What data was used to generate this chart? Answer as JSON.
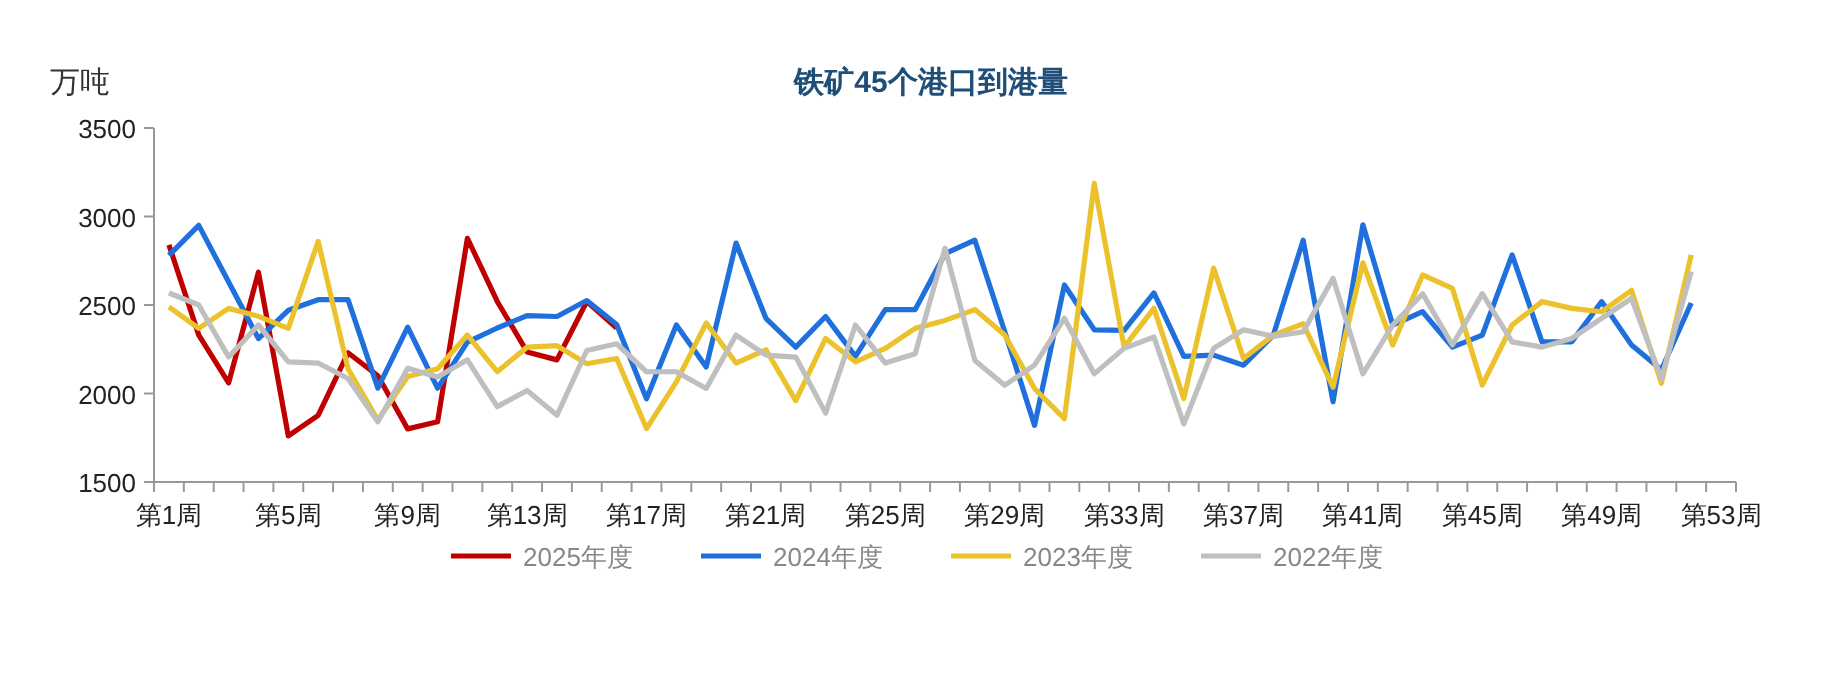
{
  "chart_data": {
    "type": "line",
    "title": "铁矿45个港口到港量",
    "ylabel": "万吨",
    "categories": [
      "第1周",
      null,
      null,
      null,
      "第5周",
      null,
      null,
      null,
      "第9周",
      null,
      null,
      null,
      "第13周",
      null,
      null,
      null,
      "第17周",
      null,
      null,
      null,
      "第21周",
      null,
      null,
      null,
      "第25周",
      null,
      null,
      null,
      "第29周",
      null,
      null,
      null,
      "第33周",
      null,
      null,
      null,
      "第37周",
      null,
      null,
      null,
      "第41周",
      null,
      null,
      null,
      "第45周",
      null,
      null,
      null,
      "第49周",
      null,
      null,
      null,
      "第53周"
    ],
    "series": [
      {
        "name": "2025年度",
        "color": "#c00000",
        "values": [
          2840,
          2330,
          2060,
          2685,
          1760,
          1877,
          2230,
          2100,
          1800,
          1840,
          2877,
          2520,
          2235,
          2190,
          2520,
          2370,
          null,
          null,
          null,
          null,
          null,
          null,
          null,
          null,
          null,
          null,
          null,
          null,
          null,
          null,
          null,
          null,
          null,
          null,
          null,
          null,
          null,
          null,
          null,
          null,
          null,
          null,
          null,
          null,
          null,
          null,
          null,
          null,
          null,
          null,
          null,
          null,
          null
        ]
      },
      {
        "name": "2024年度",
        "color": "#1f6fdc",
        "values": [
          2780,
          2950,
          2630,
          2310,
          2470,
          2530,
          2530,
          2030,
          2375,
          2030,
          2290,
          2370,
          2440,
          2435,
          2525,
          2390,
          1970,
          2387,
          2150,
          2850,
          2425,
          2262,
          2435,
          2210,
          2474,
          2474,
          2790,
          2866,
          2350,
          1820,
          2613,
          2360,
          2357,
          2568,
          2210,
          2217,
          2160,
          2330,
          2866,
          1953,
          2953,
          2387,
          2462,
          2262,
          2330,
          2783,
          2292,
          2292,
          2519,
          2274,
          2134,
          2511,
          null
        ]
      },
      {
        "name": "2023年度",
        "color": "#ecc22c",
        "values": [
          2489,
          2368,
          2481,
          2436,
          2368,
          2859,
          2140,
          1850,
          2096,
          2140,
          2330,
          2123,
          2262,
          2270,
          2168,
          2198,
          1802,
          2066,
          2398,
          2172,
          2247,
          1960,
          2311,
          2179,
          2255,
          2368,
          2413,
          2474,
          2330,
          2028,
          1858,
          3187,
          2262,
          2481,
          1972,
          2708,
          2198,
          2330,
          2394,
          2036,
          2738,
          2274,
          2670,
          2594,
          2047,
          2387,
          2519,
          2481,
          2462,
          2583,
          2058,
          2783,
          null
        ]
      },
      {
        "name": "2022年度",
        "color": "#bfbfbf",
        "values": [
          2568,
          2500,
          2206,
          2387,
          2179,
          2172,
          2085,
          1840,
          2142,
          2093,
          2190,
          1926,
          2017,
          1877,
          2243,
          2281,
          2123,
          2123,
          2028,
          2330,
          2217,
          2206,
          1889,
          2387,
          2172,
          2225,
          2821,
          2187,
          2047,
          2160,
          2425,
          2111,
          2255,
          2319,
          1828,
          2255,
          2360,
          2323,
          2349,
          2651,
          2111,
          2387,
          2564,
          2274,
          2564,
          2292,
          2262,
          2311,
          2425,
          2538,
          2085,
          2689,
          null
        ]
      }
    ],
    "ylim": [
      1500,
      3500
    ],
    "yticks": [
      1500,
      2000,
      2500,
      3000,
      3500
    ],
    "grid": false,
    "legend": "bottom",
    "marker": "none",
    "line_style": "solid"
  }
}
